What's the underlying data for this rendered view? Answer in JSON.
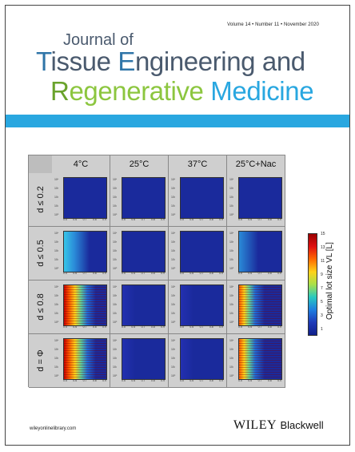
{
  "journal": {
    "issue": "Volume 14 • Number 11 • November 2020",
    "title_line1": "Journal of",
    "title_tissue_T": "T",
    "title_tissue_rest": "issue ",
    "title_eng_E": "E",
    "title_eng_rest": "ngineering and",
    "title_regen_R": "R",
    "title_regen_rest": "egenerative ",
    "title_medicine": "Medicine"
  },
  "figure": {
    "columns": [
      "4°C",
      "25°C",
      "37°C",
      "25°C+Nac"
    ],
    "rows": [
      "d ≤ 0.2",
      "d ≤ 0.5",
      "d ≤ 0.8",
      "d = Φ"
    ],
    "x_ticks": [
      "0.5",
      "0.6",
      "0.7",
      "0.8",
      "0.9"
    ],
    "y_ticks": [
      "10⁴",
      "10³",
      "10²",
      "10¹",
      "10⁰"
    ],
    "colorbar": {
      "label": "Optimal lot size VL [L]",
      "ticks": [
        "15",
        "13",
        "11",
        "9",
        "7",
        "5",
        "3",
        "1"
      ]
    }
  },
  "footer": {
    "url": "wileyonlinelibrary.com",
    "publisher_main": "WILEY",
    "publisher_sub": "Blackwell"
  }
}
